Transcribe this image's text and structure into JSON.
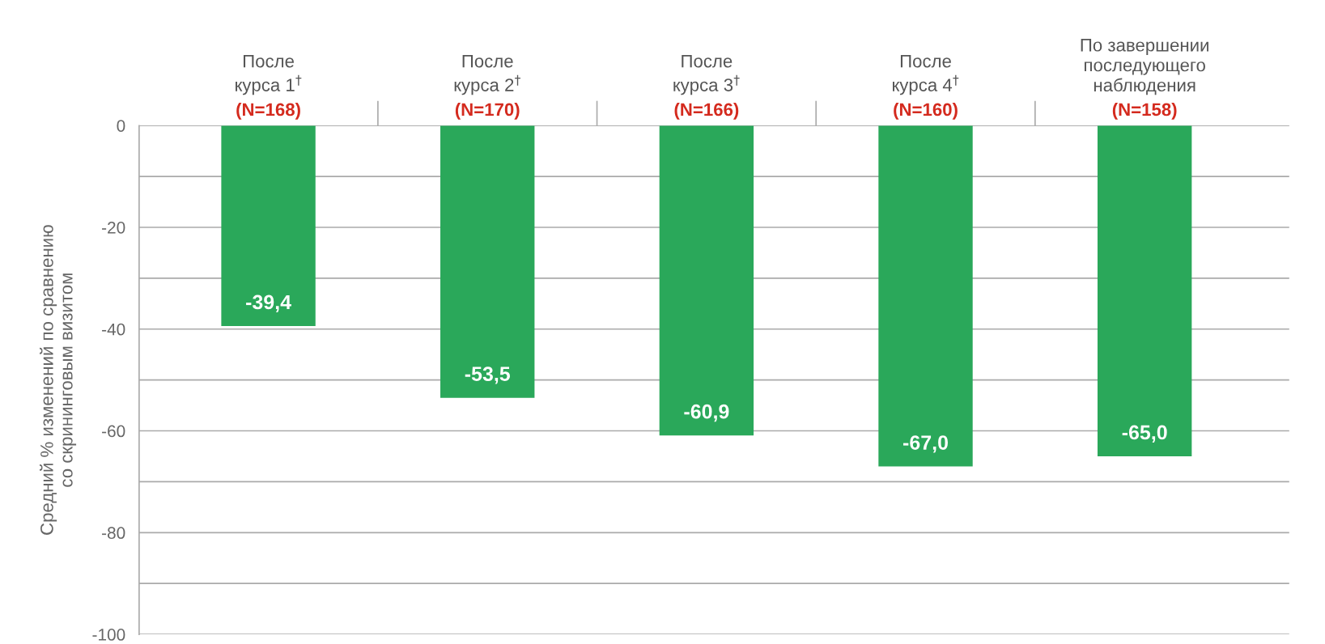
{
  "chart_data": {
    "type": "bar",
    "ylabel": "Средний % изменений по сравнению\nсо скрининговым визитом",
    "categories": [
      "После\nкурса 1$^{†}$\n(N=168)",
      "После\nкурса 2$^{†}$\n(N=170)",
      "После\nкурса 3$^{†}$\n(N=166)",
      "После\nкурса 4$^{†}$\n(N=160)",
      "По завершении\nпоследующего\nнаблюдения\n(N=158)"
    ],
    "values": [
      -39.4,
      -53.5,
      -60.9,
      -67.0,
      -65.0
    ],
    "value_labels": [
      "-39,4",
      "-53,5",
      "-60,9",
      "-67,0",
      "-65,0"
    ],
    "color": "#2aa85a",
    "ylim": [
      -100,
      0
    ],
    "yticks": [
      0,
      {
        "value": -10,
        "label": null
      },
      -20,
      {
        "value": -30,
        "label": null
      },
      -40,
      {
        "value": -50,
        "label": null
      },
      -60,
      {
        "value": -70,
        "label": null
      },
      -80,
      {
        "value": -90,
        "label": null
      },
      -100
    ],
    "grid": "y"
  }
}
